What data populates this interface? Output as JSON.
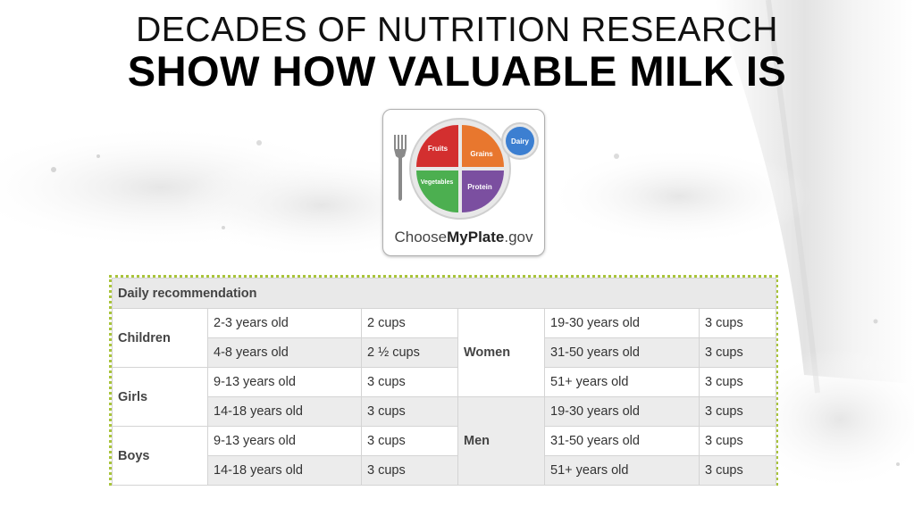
{
  "header": {
    "line1": "DECADES OF NUTRITION RESEARCH",
    "line2": "SHOW HOW VALUABLE MILK IS"
  },
  "logo": {
    "segments": {
      "fruits": "Fruits",
      "grains": "Grains",
      "vegetables": "Vegetables",
      "protein": "Protein",
      "dairy": "Dairy"
    },
    "text_prefix": "Choose",
    "text_bold": "MyPlate",
    "text_suffix": ".gov",
    "colors": {
      "fruits": "#d32f2f",
      "grains": "#e8772e",
      "vegetables": "#4caf50",
      "protein": "#7b4fa0",
      "dairy": "#3c7fd1"
    }
  },
  "table": {
    "header": "Daily recommendation",
    "left": [
      {
        "group": "Children",
        "rows": [
          {
            "age": "2-3 years old",
            "amount": "2 cups"
          },
          {
            "age": "4-8 years old",
            "amount": "2 ½ cups"
          }
        ]
      },
      {
        "group": "Girls",
        "rows": [
          {
            "age": "9-13 years old",
            "amount": "3 cups"
          },
          {
            "age": "14-18 years old",
            "amount": "3 cups"
          }
        ]
      },
      {
        "group": "Boys",
        "rows": [
          {
            "age": "9-13 years old",
            "amount": "3 cups"
          },
          {
            "age": "14-18 years old",
            "amount": "3 cups"
          }
        ]
      }
    ],
    "right": [
      {
        "group": "Women",
        "rows": [
          {
            "age": "19-30 years old",
            "amount": "3 cups"
          },
          {
            "age": "31-50 years old",
            "amount": "3 cups"
          },
          {
            "age": "51+ years old",
            "amount": "3 cups"
          }
        ]
      },
      {
        "group": "Men",
        "rows": [
          {
            "age": "19-30 years old",
            "amount": "3 cups"
          },
          {
            "age": "31-50 years old",
            "amount": "3 cups"
          },
          {
            "age": "51+ years old",
            "amount": "3 cups"
          }
        ]
      }
    ]
  }
}
